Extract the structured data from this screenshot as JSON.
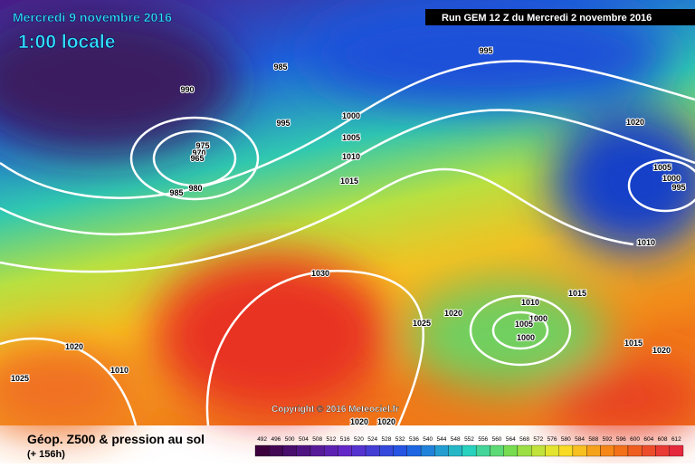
{
  "header": {
    "date": "Mercredi 9 novembre 2016",
    "time": "1:00 locale",
    "run": "Run GEM 12 Z du Mercredi 2 novembre 2016"
  },
  "map": {
    "copyright": "Copyright © 2016 Meteociel.fr",
    "isobar_labels": [
      "985",
      "990",
      "995",
      "995",
      "1000",
      "1005",
      "1010",
      "1015",
      "975",
      "970",
      "965",
      "980",
      "985",
      "1020",
      "1005",
      "1000",
      "995",
      "1010",
      "1030",
      "1015",
      "1010",
      "1000",
      "1005",
      "1000",
      "1020",
      "1025",
      "1015",
      "1020",
      "1020",
      "1010",
      "1025",
      "1020",
      "1020"
    ]
  },
  "legend": {
    "title": "Géop. Z500 & pression au sol",
    "subtitle": "(+ 156h)",
    "values": [
      "492",
      "496",
      "500",
      "504",
      "508",
      "512",
      "516",
      "520",
      "524",
      "528",
      "532",
      "536",
      "540",
      "544",
      "548",
      "552",
      "556",
      "560",
      "564",
      "568",
      "572",
      "576",
      "580",
      "584",
      "588",
      "592",
      "596",
      "600",
      "604",
      "608",
      "612"
    ]
  }
}
